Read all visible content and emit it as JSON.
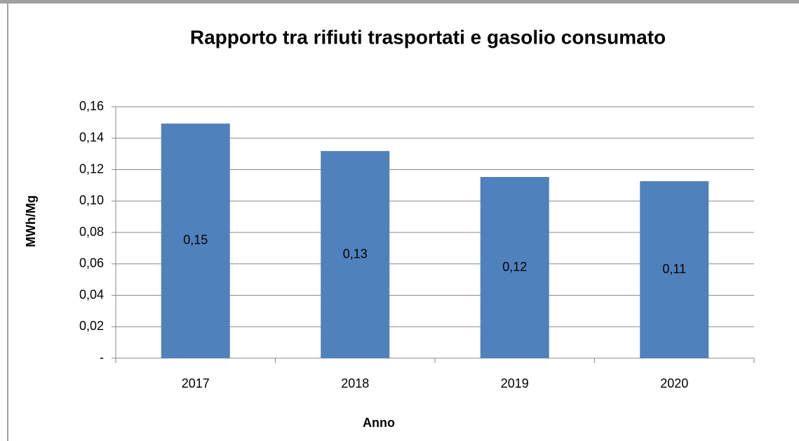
{
  "chart_data": {
    "type": "bar",
    "title": "Rapporto tra rifiuti trasportati e gasolio consumato",
    "x_label": "Anno",
    "y_label": "MWh/Mg",
    "categories": [
      "2017",
      "2018",
      "2019",
      "2020"
    ],
    "values": [
      0.1493,
      0.1318,
      0.1153,
      0.1126
    ],
    "value_labels": [
      "0,15",
      "0,13",
      "0,12",
      "0,11"
    ],
    "color": "#4f81bd",
    "ylim": [
      0,
      0.16
    ],
    "yticks": [
      {
        "value": 0,
        "label": "-"
      },
      {
        "value": 0.02,
        "label": "0,02"
      },
      {
        "value": 0.04,
        "label": "0,04"
      },
      {
        "value": 0.06,
        "label": "0,06"
      },
      {
        "value": 0.08,
        "label": "0,08"
      },
      {
        "value": 0.1,
        "label": "0,10"
      },
      {
        "value": 0.12,
        "label": "0,12"
      },
      {
        "value": 0.14,
        "label": "0,14"
      },
      {
        "value": 0.16,
        "label": "0,16"
      }
    ],
    "grid": true
  }
}
